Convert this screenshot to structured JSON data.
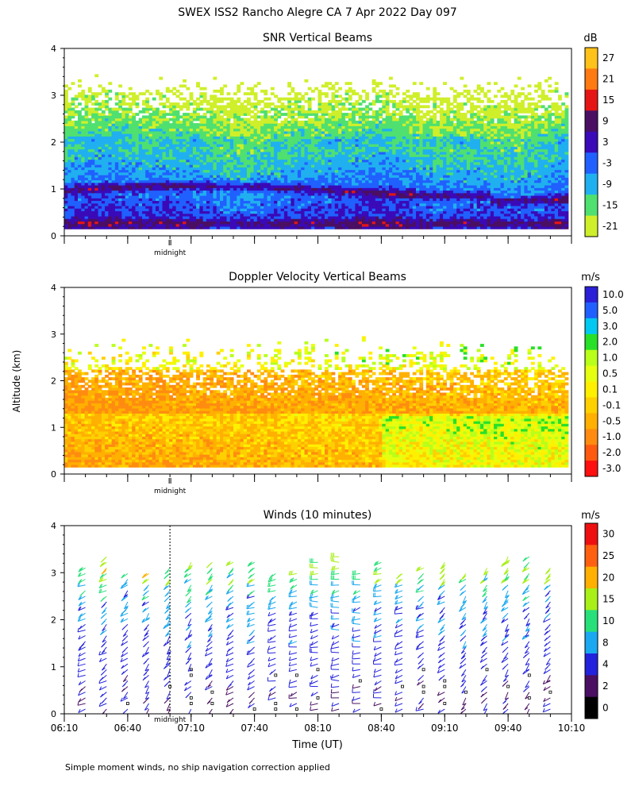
{
  "title": "SWEX ISS2 Rancho Alegre CA   7 Apr 2022 Day 097",
  "y_axis_label": "Altitude (km)",
  "x_axis_label": "Time (UT)",
  "footnote": "Simple moment winds, no ship navigation correction applied",
  "midnight_label": "midnight",
  "colors": {
    "snr_scale": [
      "#cfef2a",
      "#4fe070",
      "#20b0f0",
      "#2060ff",
      "#3a0ab8",
      "#4a0f63",
      "#e61515",
      "#ff7a10",
      "#ffc21a"
    ],
    "dop_scale": [
      "#ff1010",
      "#ff5a10",
      "#ff8c10",
      "#ffb000",
      "#ffd000",
      "#fff000",
      "#e6ff10",
      "#b8ff1a",
      "#28e028",
      "#00c8f0",
      "#2060ff",
      "#2a20d8",
      "#4a0aa0",
      "#3a0a3a"
    ],
    "wind_scale": [
      "#000000",
      "#4a0f63",
      "#2222dd",
      "#1aa8f0",
      "#28e07a",
      "#a8f018",
      "#ffb000",
      "#ff6010",
      "#ee1010"
    ]
  },
  "chart_data": [
    {
      "type": "heatmap",
      "title": "SNR Vertical Beams",
      "unit": "dB",
      "x_range": [
        0,
        240
      ],
      "x_label": "Time (UT)",
      "ylabel": "Altitude (km)",
      "ylim": [
        0,
        4
      ],
      "y_ticks": [
        0,
        1,
        2,
        3,
        4
      ],
      "colorbar_labels": [
        "27",
        "21",
        "15",
        "9",
        "3",
        "-3",
        "-9",
        "-15",
        "-21"
      ],
      "colorbar_values": [
        30,
        24,
        18,
        12,
        6,
        0,
        -6,
        -12,
        -18,
        -24
      ],
      "features": {
        "data_top_km_range": [
          3.0,
          3.7
        ],
        "inversion_layer_height_km": 0.95
      }
    },
    {
      "type": "heatmap",
      "title": "Doppler Velocity Vertical Beams",
      "unit": "m/s",
      "x_range": [
        0,
        240
      ],
      "ylabel": "Altitude (km)",
      "ylim": [
        0,
        4
      ],
      "y_ticks": [
        0,
        1,
        2,
        3,
        4
      ],
      "colorbar_labels": [
        "10.0",
        "5.0",
        "3.0",
        "2.0",
        "1.0",
        "0.5",
        "0.1",
        "-0.1",
        "-0.5",
        "-1.0",
        "-2.0",
        "-3.0"
      ]
    },
    {
      "type": "wind-barbs",
      "title": "Winds (10 minutes)",
      "unit": "m/s",
      "x_range": [
        0,
        240
      ],
      "x_ticks_minutes": [
        0,
        30,
        60,
        90,
        120,
        150,
        180,
        210,
        240
      ],
      "x_tick_labels": [
        "06:10",
        "06:40",
        "07:10",
        "07:40",
        "08:10",
        "08:40",
        "09:10",
        "09:40",
        "10:10"
      ],
      "ylabel": "Altitude (km)",
      "ylim": [
        0,
        4
      ],
      "y_ticks": [
        0,
        1,
        2,
        3,
        4
      ],
      "colorbar_labels": [
        "30",
        "25",
        "20",
        "15",
        "10",
        "8",
        "4",
        "2",
        "0"
      ],
      "profile_times_minutes": [
        10,
        20,
        30,
        40,
        50,
        60,
        70,
        80,
        90,
        100,
        110,
        120,
        130,
        140,
        150,
        160,
        170,
        180,
        190,
        200,
        210,
        220,
        230
      ],
      "midnight_marker_minutes": 50
    }
  ]
}
